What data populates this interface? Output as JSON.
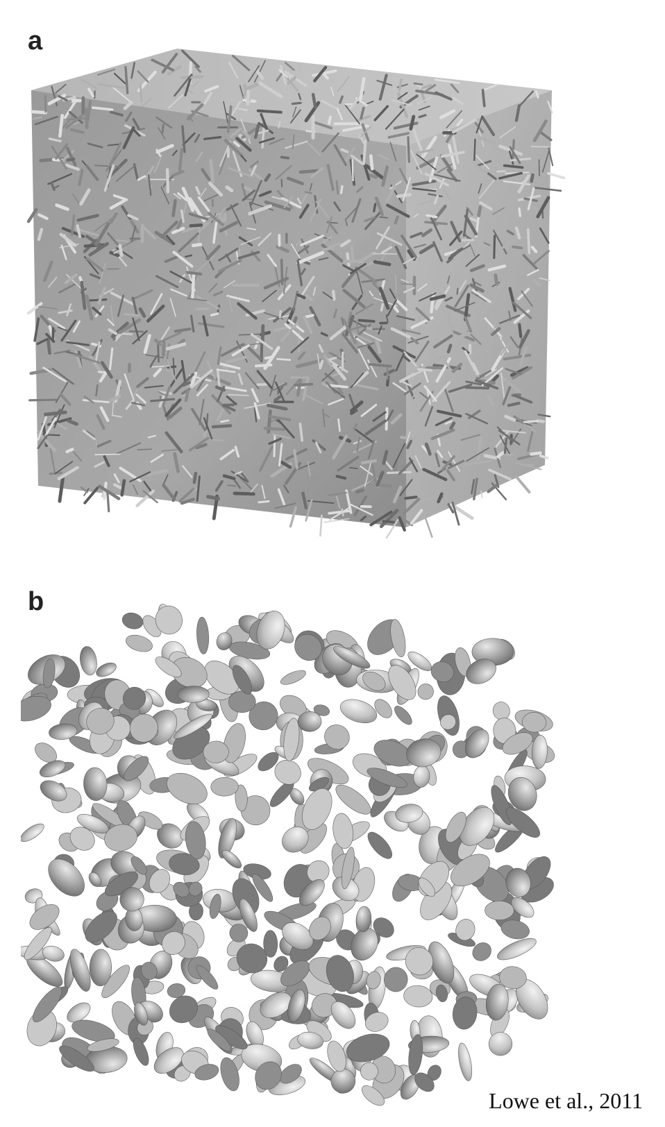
{
  "figure": {
    "panels": [
      {
        "label": "a",
        "subject": "3D rendering of fibrous porous material (fine, flaky fibres)"
      },
      {
        "label": "b",
        "subject": "3D rendering of porous material with rounded, blob-like ligaments"
      }
    ],
    "credit": "Lowe et al., 2011",
    "colors": {
      "background": "#ffffff",
      "surface_light": "#d9d9d9",
      "surface_mid": "#9e9e9e",
      "surface_dark": "#5e5e5e"
    }
  }
}
